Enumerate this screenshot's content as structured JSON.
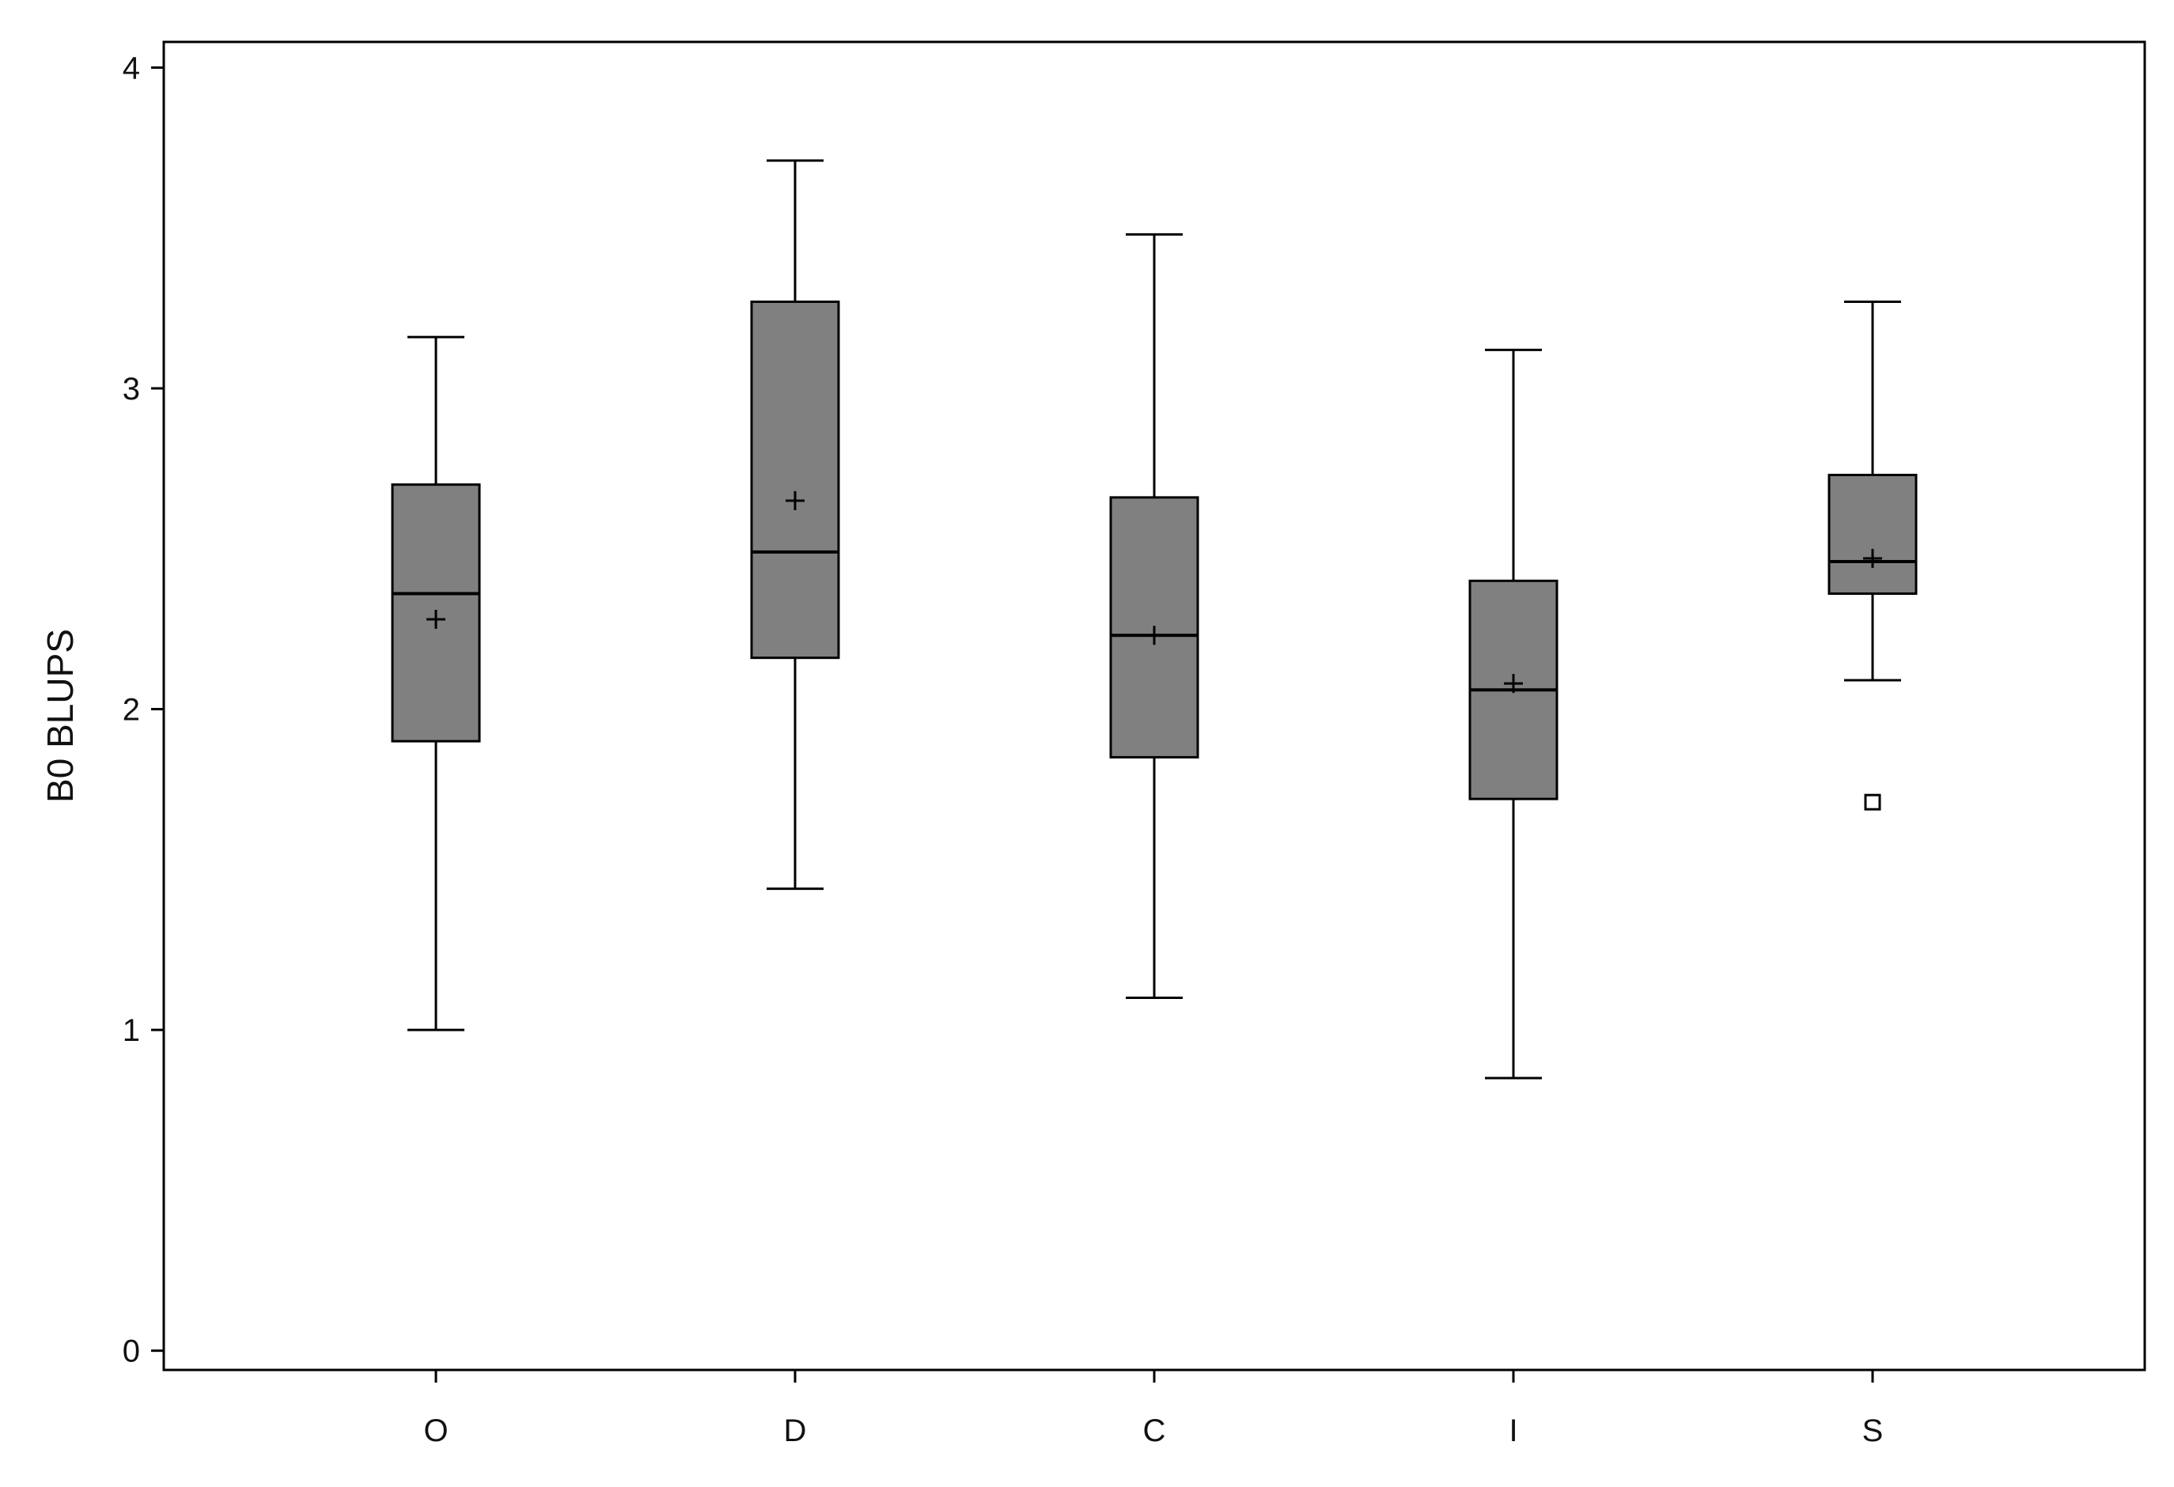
{
  "chart_data": {
    "type": "boxplot",
    "title": "",
    "xlabel": "",
    "ylabel": "B0 BLUPS",
    "ylim": [
      -0.06,
      4.08
    ],
    "yticks": [
      0,
      1,
      2,
      3,
      4
    ],
    "grid": false,
    "legend": "none",
    "colors": {
      "box_fill": "#808080",
      "stroke": "#000000",
      "background": "#ffffff"
    },
    "categories": [
      "O",
      "D",
      "C",
      "I",
      "S"
    ],
    "boxes": [
      {
        "category": "O",
        "whisker_low": 1.0,
        "q1": 1.9,
        "median": 2.36,
        "q3": 2.7,
        "whisker_high": 3.16,
        "mean": 2.28,
        "outliers": []
      },
      {
        "category": "D",
        "whisker_low": 1.44,
        "q1": 2.16,
        "median": 2.49,
        "q3": 3.27,
        "whisker_high": 3.71,
        "mean": 2.65,
        "outliers": []
      },
      {
        "category": "C",
        "whisker_low": 1.1,
        "q1": 1.85,
        "median": 2.23,
        "q3": 2.66,
        "whisker_high": 3.48,
        "mean": 2.23,
        "outliers": []
      },
      {
        "category": "I",
        "whisker_low": 0.85,
        "q1": 1.72,
        "median": 2.06,
        "q3": 2.4,
        "whisker_high": 3.12,
        "mean": 2.08,
        "outliers": []
      },
      {
        "category": "S",
        "whisker_low": 2.09,
        "q1": 2.36,
        "median": 2.46,
        "q3": 2.73,
        "whisker_high": 3.27,
        "mean": 2.47,
        "outliers": [
          1.71
        ]
      }
    ]
  }
}
